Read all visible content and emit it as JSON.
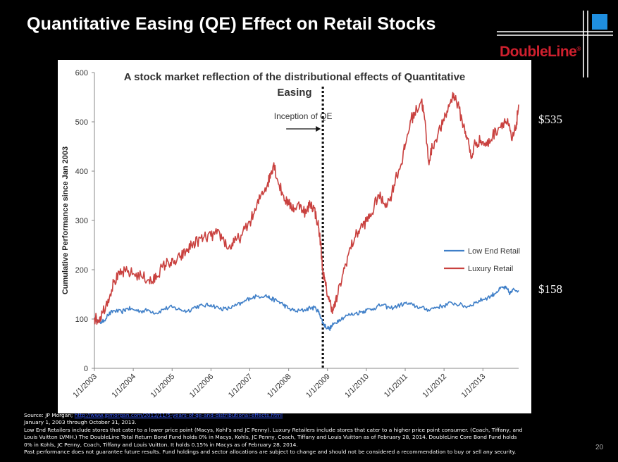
{
  "slide": {
    "title": "Quantitative Easing (QE) Effect on Retail Stocks",
    "brand": "DoubleLine",
    "brand_mark": "®",
    "page_number": "20"
  },
  "callouts": {
    "luxury_end": "$535",
    "low_end_end": "$158"
  },
  "footnotes": {
    "source_prefix": "Source: JP Morgan;",
    "source_link": "http://www.jpmorgan.com/2013/11/5-years-of-qe-and-distributional-effects.html",
    "period": "January 1, 2003 through October 31, 2013.",
    "line1": "Low End Retailers include stores that cater to a lower price point (Macys, Kohl’s and JC Penny). Luxury Retailers include stores that cater to a higher price point consumer. (Coach, Tiffany, and",
    "line2": "Louis Vuitton LVMH.) The DoubleLine Total Return Bond Fund holds 0% in Macys, Kohls, JC Penny, Coach, Tiffany and Louis Vuitton as of February 28, 2014. DoubleLine Core Bond Fund holds",
    "line3": "0% in Kohls, JC Penny, Coach, Tiffany and Louis Vuitton.  It holds 0.15% in Macys as of February 28, 2014.",
    "line4": "Past performance does not guarantee future results. Fund holdings and sector allocations are subject to change and should not be considered a recommendation to buy or sell any security."
  },
  "colors": {
    "low_end": "#3f7fc8",
    "luxury": "#c9413f",
    "brand_red": "#d0202e",
    "brand_blue": "#1f8fe0"
  },
  "chart_data": {
    "type": "line",
    "title": "A stock market reflection of the distributional effects of Quantitative Easing",
    "title_line1": "A stock market reflection of the distributional effects of Quantitative",
    "title_line2": "Easing",
    "xlabel": "",
    "ylabel": "Cumulative Performance since Jan 2003",
    "ylim": [
      0,
      600
    ],
    "yticks": [
      0,
      100,
      200,
      300,
      400,
      500,
      600
    ],
    "xlim": [
      2003.0,
      2013.92
    ],
    "xticks": [
      {
        "label": "1/1/2003",
        "x": 2003
      },
      {
        "label": "1/1/2004",
        "x": 2004
      },
      {
        "label": "1/1/2005",
        "x": 2005
      },
      {
        "label": "1/1/2006",
        "x": 2006
      },
      {
        "label": "1/1/2007",
        "x": 2007
      },
      {
        "label": "1/1/2008",
        "x": 2008
      },
      {
        "label": "1/1/2009",
        "x": 2009
      },
      {
        "label": "1/1/2010",
        "x": 2010
      },
      {
        "label": "1/1/2011",
        "x": 2011
      },
      {
        "label": "1/1/2012",
        "x": 2012
      },
      {
        "label": "1/1/2013",
        "x": 2013
      }
    ],
    "legend_position": "right",
    "grid": false,
    "annotation": {
      "label": "Inception of QE",
      "x": 2008.88
    },
    "series": [
      {
        "name": "Low End Retail",
        "color": "#3f7fc8",
        "points": [
          [
            2003.0,
            102
          ],
          [
            2003.1,
            95
          ],
          [
            2003.2,
            93
          ],
          [
            2003.35,
            108
          ],
          [
            2003.5,
            117
          ],
          [
            2003.7,
            114
          ],
          [
            2003.85,
            122
          ],
          [
            2004.0,
            119
          ],
          [
            2004.2,
            116
          ],
          [
            2004.4,
            118
          ],
          [
            2004.6,
            112
          ],
          [
            2004.8,
            121
          ],
          [
            2005.0,
            124
          ],
          [
            2005.2,
            119
          ],
          [
            2005.4,
            116
          ],
          [
            2005.6,
            125
          ],
          [
            2005.8,
            127
          ],
          [
            2006.0,
            129
          ],
          [
            2006.2,
            122
          ],
          [
            2006.4,
            120
          ],
          [
            2006.6,
            126
          ],
          [
            2006.8,
            132
          ],
          [
            2007.0,
            143
          ],
          [
            2007.2,
            146
          ],
          [
            2007.4,
            148
          ],
          [
            2007.55,
            141
          ],
          [
            2007.7,
            137
          ],
          [
            2007.85,
            130
          ],
          [
            2008.0,
            121
          ],
          [
            2008.2,
            116
          ],
          [
            2008.4,
            118
          ],
          [
            2008.55,
            123
          ],
          [
            2008.7,
            122
          ],
          [
            2008.8,
            110
          ],
          [
            2008.88,
            92
          ],
          [
            2008.95,
            85
          ],
          [
            2009.05,
            80
          ],
          [
            2009.15,
            89
          ],
          [
            2009.3,
            99
          ],
          [
            2009.5,
            107
          ],
          [
            2009.7,
            111
          ],
          [
            2009.9,
            115
          ],
          [
            2010.0,
            118
          ],
          [
            2010.2,
            122
          ],
          [
            2010.4,
            129
          ],
          [
            2010.6,
            122
          ],
          [
            2010.8,
            126
          ],
          [
            2011.0,
            132
          ],
          [
            2011.2,
            128
          ],
          [
            2011.4,
            123
          ],
          [
            2011.6,
            119
          ],
          [
            2011.8,
            124
          ],
          [
            2012.0,
            127
          ],
          [
            2012.2,
            133
          ],
          [
            2012.4,
            129
          ],
          [
            2012.6,
            125
          ],
          [
            2012.8,
            133
          ],
          [
            2013.0,
            140
          ],
          [
            2013.2,
            146
          ],
          [
            2013.35,
            155
          ],
          [
            2013.5,
            164
          ],
          [
            2013.6,
            162
          ],
          [
            2013.7,
            152
          ],
          [
            2013.8,
            160
          ],
          [
            2013.92,
            158
          ]
        ]
      },
      {
        "name": "Luxury Retail",
        "color": "#c9413f",
        "points": [
          [
            2003.0,
            102
          ],
          [
            2003.1,
            98
          ],
          [
            2003.2,
            112
          ],
          [
            2003.35,
            140
          ],
          [
            2003.5,
            175
          ],
          [
            2003.65,
            190
          ],
          [
            2003.8,
            196
          ],
          [
            2004.0,
            192
          ],
          [
            2004.2,
            187
          ],
          [
            2004.4,
            180
          ],
          [
            2004.5,
            175
          ],
          [
            2004.6,
            188
          ],
          [
            2004.75,
            205
          ],
          [
            2004.9,
            216
          ],
          [
            2005.05,
            212
          ],
          [
            2005.2,
            225
          ],
          [
            2005.35,
            236
          ],
          [
            2005.5,
            250
          ],
          [
            2005.65,
            258
          ],
          [
            2005.8,
            264
          ],
          [
            2006.0,
            268
          ],
          [
            2006.15,
            273
          ],
          [
            2006.3,
            265
          ],
          [
            2006.45,
            243
          ],
          [
            2006.6,
            255
          ],
          [
            2006.8,
            270
          ],
          [
            2007.0,
            298
          ],
          [
            2007.15,
            320
          ],
          [
            2007.3,
            355
          ],
          [
            2007.45,
            372
          ],
          [
            2007.55,
            398
          ],
          [
            2007.62,
            417
          ],
          [
            2007.7,
            385
          ],
          [
            2007.85,
            352
          ],
          [
            2008.0,
            332
          ],
          [
            2008.15,
            325
          ],
          [
            2008.3,
            332
          ],
          [
            2008.45,
            314
          ],
          [
            2008.55,
            335
          ],
          [
            2008.65,
            325
          ],
          [
            2008.75,
            295
          ],
          [
            2008.82,
            255
          ],
          [
            2008.88,
            195
          ],
          [
            2008.95,
            168
          ],
          [
            2009.05,
            135
          ],
          [
            2009.15,
            118
          ],
          [
            2009.25,
            145
          ],
          [
            2009.4,
            192
          ],
          [
            2009.55,
            235
          ],
          [
            2009.7,
            265
          ],
          [
            2009.85,
            285
          ],
          [
            2010.0,
            298
          ],
          [
            2010.15,
            315
          ],
          [
            2010.3,
            352
          ],
          [
            2010.45,
            335
          ],
          [
            2010.6,
            340
          ],
          [
            2010.75,
            385
          ],
          [
            2010.9,
            415
          ],
          [
            2011.0,
            452
          ],
          [
            2011.15,
            505
          ],
          [
            2011.3,
            525
          ],
          [
            2011.42,
            545
          ],
          [
            2011.5,
            505
          ],
          [
            2011.6,
            420
          ],
          [
            2011.7,
            448
          ],
          [
            2011.85,
            478
          ],
          [
            2012.0,
            502
          ],
          [
            2012.15,
            538
          ],
          [
            2012.25,
            557
          ],
          [
            2012.35,
            535
          ],
          [
            2012.5,
            492
          ],
          [
            2012.6,
            468
          ],
          [
            2012.7,
            425
          ],
          [
            2012.8,
            458
          ],
          [
            2012.95,
            462
          ],
          [
            2013.1,
            452
          ],
          [
            2013.25,
            472
          ],
          [
            2013.4,
            488
          ],
          [
            2013.55,
            502
          ],
          [
            2013.65,
            495
          ],
          [
            2013.75,
            462
          ],
          [
            2013.85,
            488
          ],
          [
            2013.92,
            535
          ]
        ]
      }
    ]
  }
}
